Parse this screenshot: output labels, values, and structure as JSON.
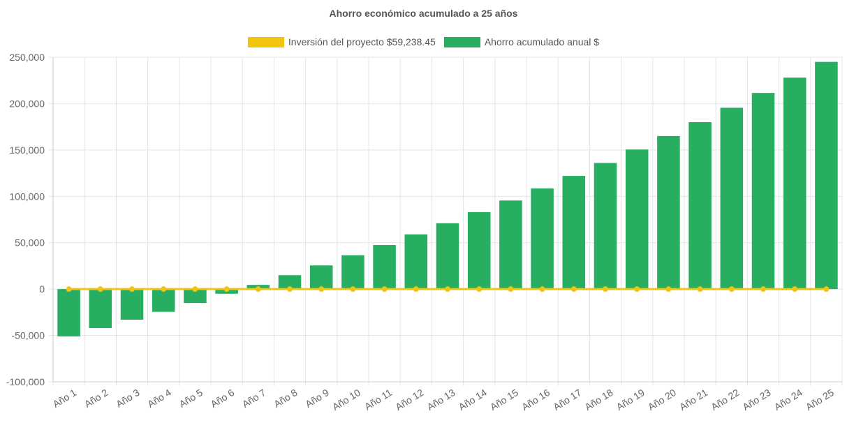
{
  "chart_data": {
    "type": "bar",
    "title": "Ahorro económico acumulado a 25 años",
    "categories": [
      "Año 1",
      "Año 2",
      "Año 3",
      "Año 4",
      "Año 5",
      "Año 6",
      "Año 7",
      "Año 8",
      "Año 9",
      "Año 10",
      "Año 11",
      "Año 12",
      "Año 13",
      "Año 14",
      "Año 15",
      "Año 16",
      "Año 17",
      "Año 18",
      "Año 19",
      "Año 20",
      "Año 21",
      "Año 22",
      "Año 23",
      "Año 24",
      "Año 25"
    ],
    "series": [
      {
        "name": "Inversión del proyecto $59,238.45",
        "type": "line",
        "color": "#f1c40f",
        "values": [
          0,
          0,
          0,
          0,
          0,
          0,
          0,
          0,
          0,
          0,
          0,
          0,
          0,
          0,
          0,
          0,
          0,
          0,
          0,
          0,
          0,
          0,
          0,
          0,
          0
        ]
      },
      {
        "name": "Ahorro acumulado anual $",
        "type": "bar",
        "color": "#27ae60",
        "values": [
          -51000,
          -42000,
          -33000,
          -24500,
          -15000,
          -5000,
          4500,
          15000,
          25500,
          36500,
          47500,
          59000,
          71000,
          83000,
          95500,
          108500,
          122000,
          136000,
          150500,
          165000,
          180000,
          195500,
          211500,
          228000,
          245000
        ]
      }
    ],
    "ylim": [
      -100000,
      250000
    ],
    "yticks": [
      250000,
      200000,
      150000,
      100000,
      50000,
      0,
      -50000,
      -100000
    ],
    "ytick_labels": [
      "250,000",
      "200,000",
      "150,000",
      "100,000",
      "50,000",
      "0",
      "-50,000",
      "-100,000"
    ],
    "grid": true,
    "legend_position": "top-center",
    "xlabel": "",
    "ylabel": ""
  }
}
